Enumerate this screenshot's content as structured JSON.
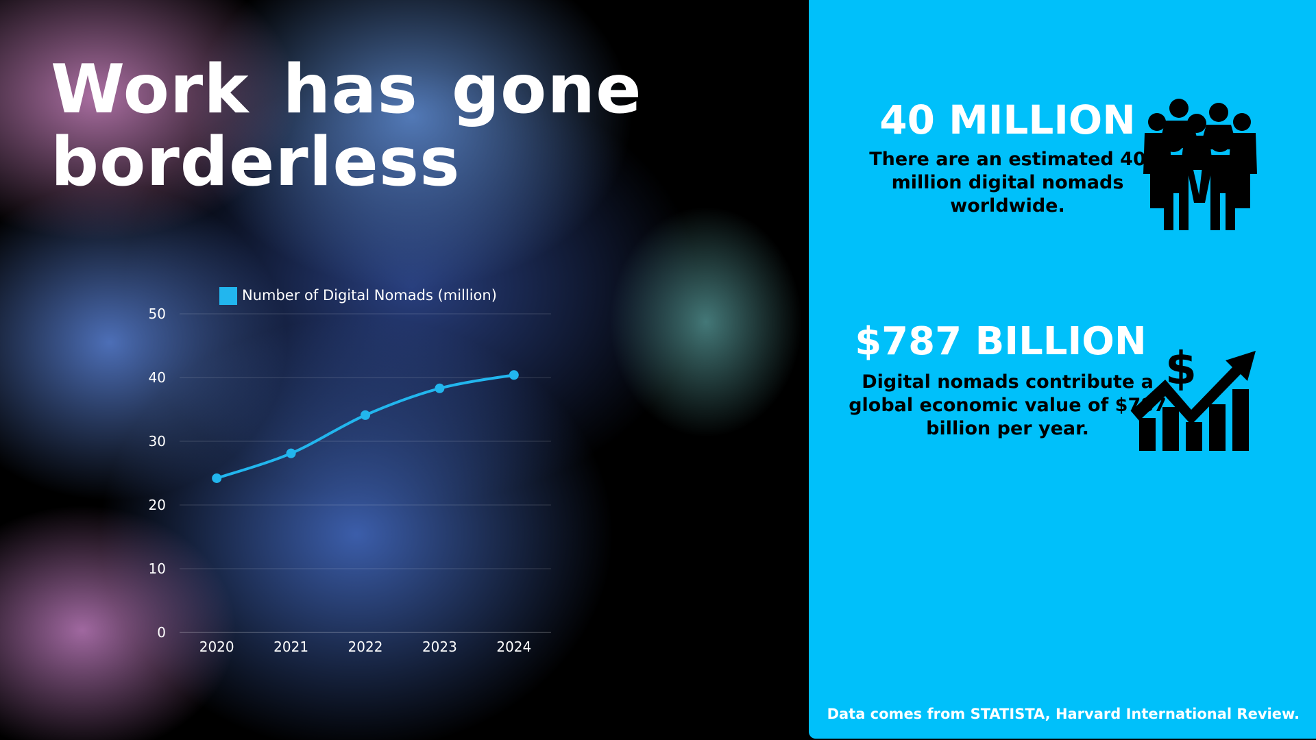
{
  "title": {
    "line1": "Work has gone",
    "line2": "borderless"
  },
  "chart_data": {
    "type": "line",
    "legend": "Number of Digital Nomads (million)",
    "legend_position": "top",
    "x": [
      "2020",
      "2021",
      "2022",
      "2023",
      "2024"
    ],
    "series": [
      {
        "name": "Number of Digital Nomads (million)",
        "values": [
          24.2,
          28.1,
          34.1,
          38.3,
          40.4
        ],
        "color": "#22b6ee"
      }
    ],
    "yticks": [
      "0",
      "10",
      "20",
      "30",
      "40",
      "50"
    ],
    "ylim": [
      0,
      50
    ],
    "grid": true
  },
  "stats": {
    "nomads": {
      "value": "40 MILLION",
      "description": "There are an estimated 40 million digital nomads worldwide.",
      "icon": "people-group-icon"
    },
    "economy": {
      "value": "$787 BILLION",
      "description": "Digital nomads contribute a global economic value of $787 billion per year.",
      "icon": "growth-chart-dollar-icon"
    }
  },
  "source": "Data comes from STATISTA, Harvard International Review.",
  "colors": {
    "panel": "#00c0fa",
    "line": "#22b6ee",
    "text_light": "#ffffff",
    "text_dark": "#000000"
  }
}
